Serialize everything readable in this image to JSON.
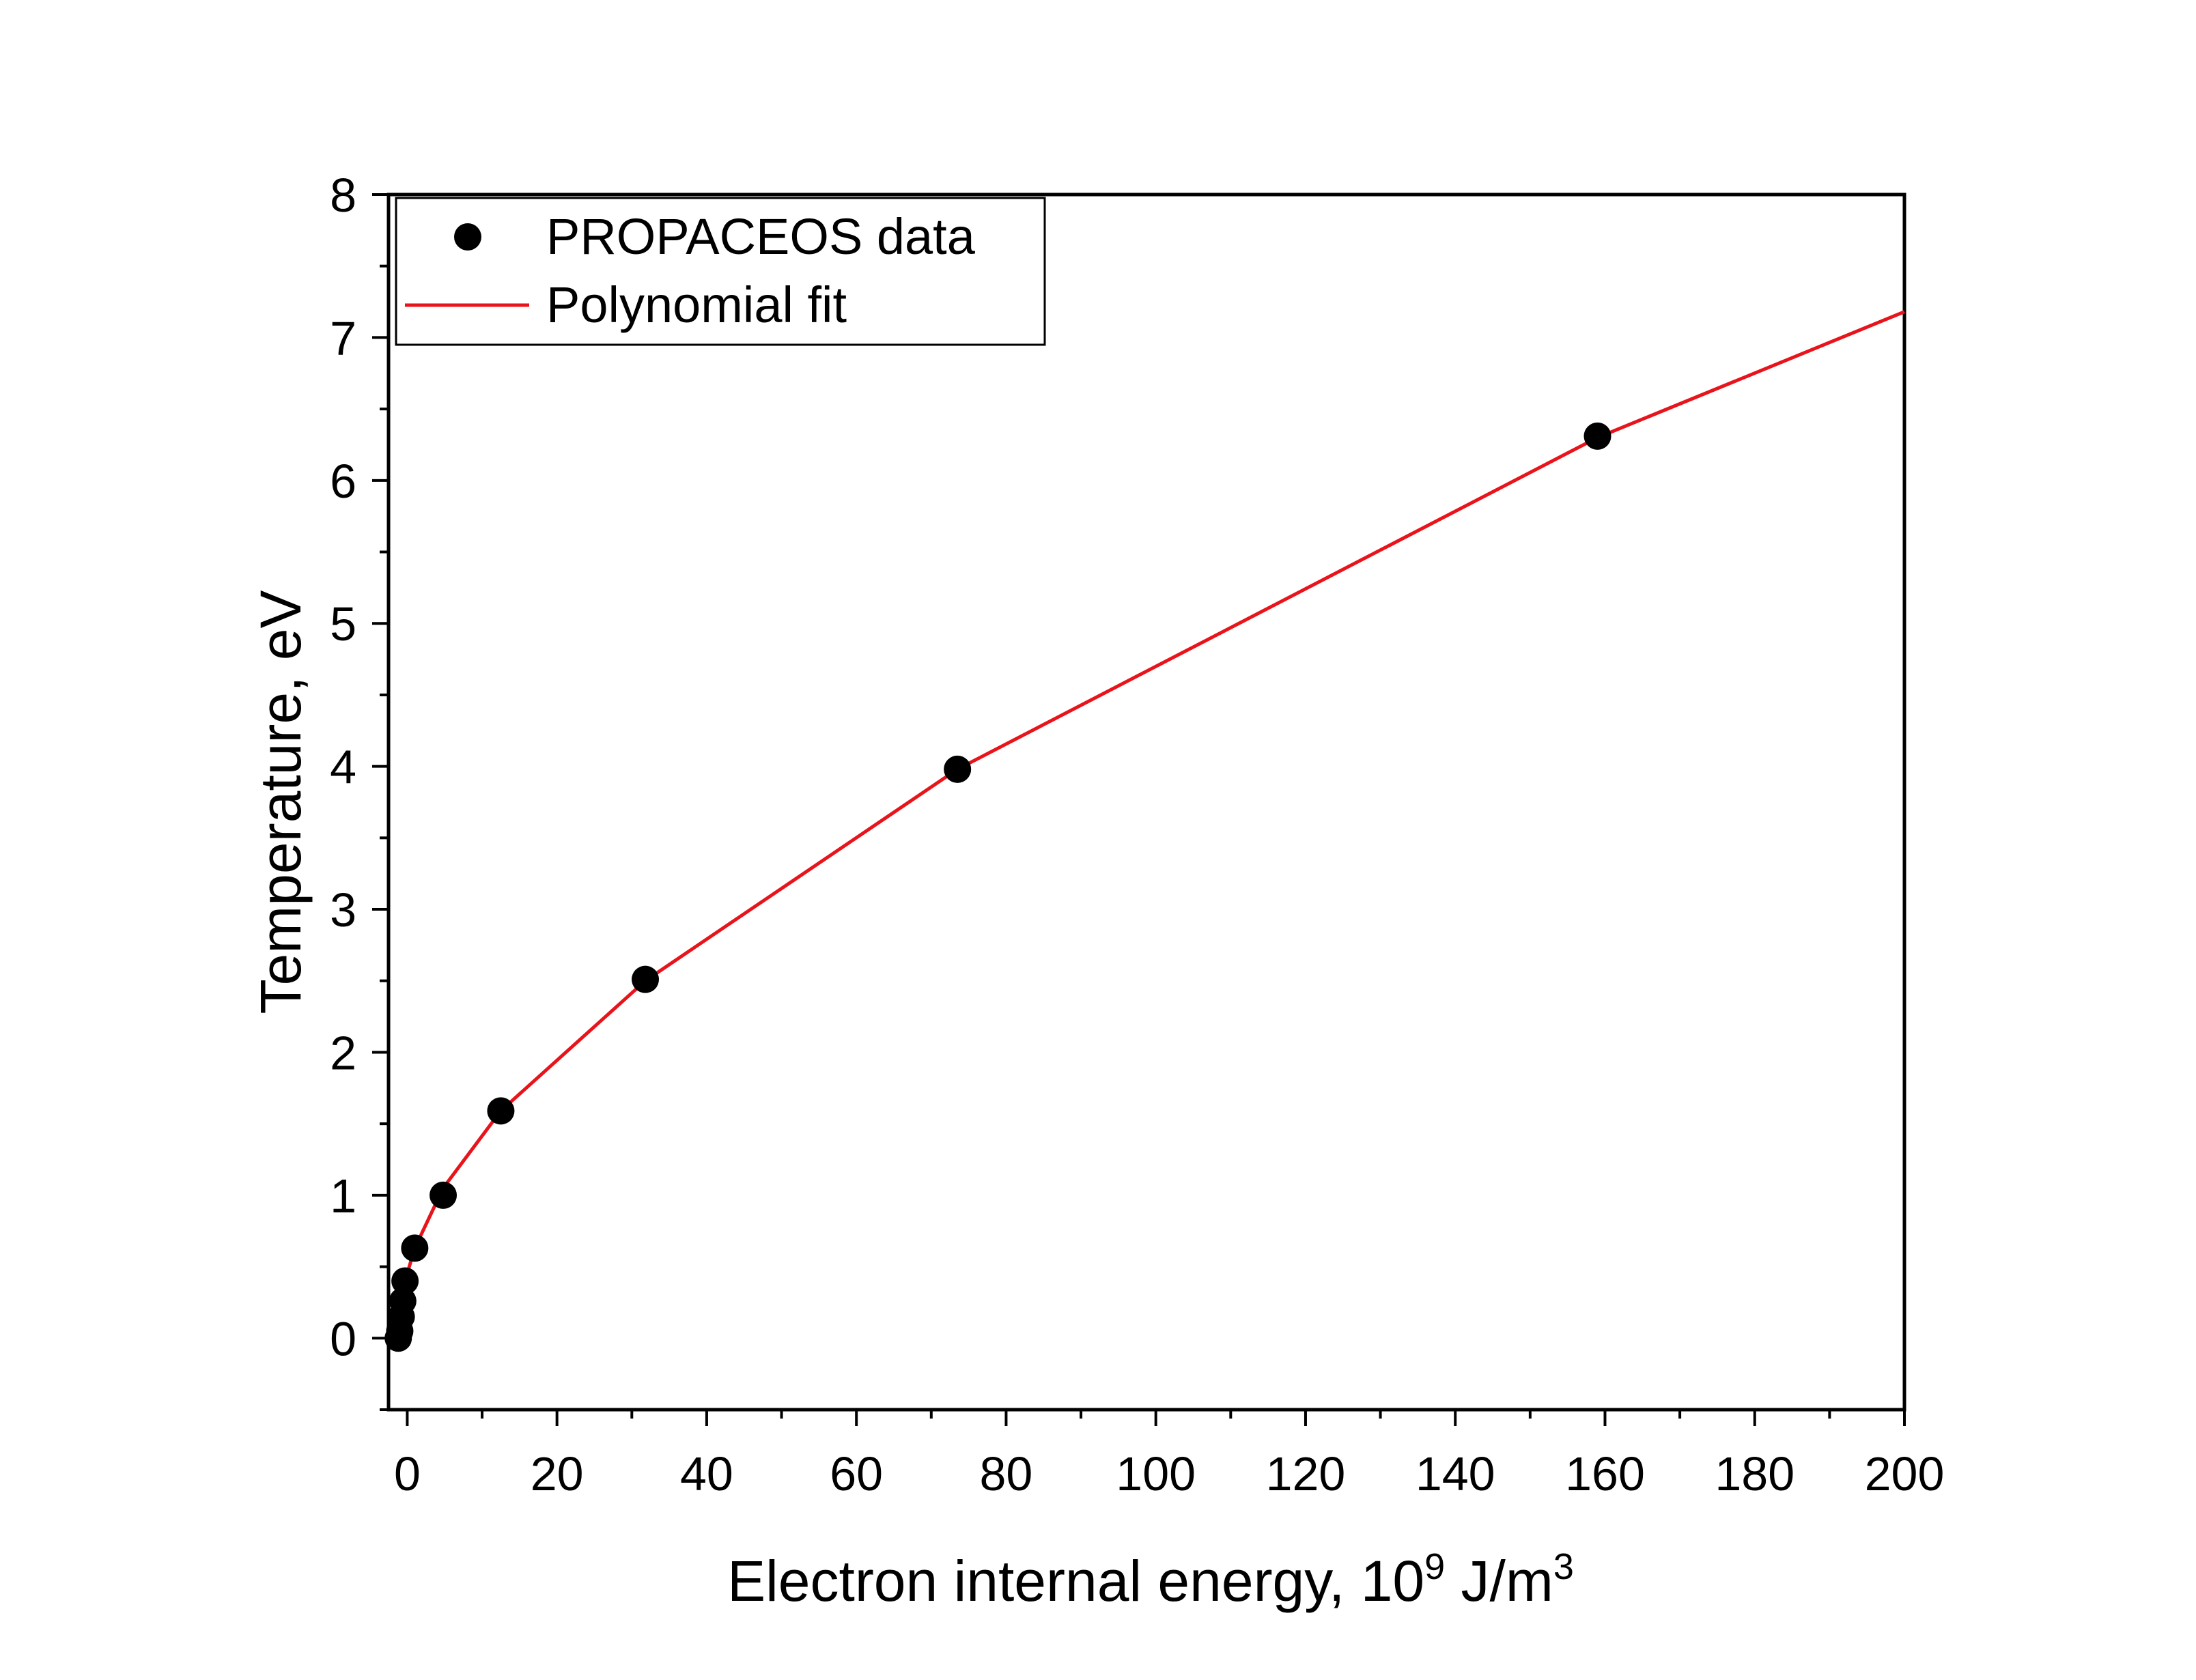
{
  "chart_data": {
    "type": "scatter",
    "title": "",
    "xlabel": "Electron internal energy, 10",
    "xlabel_exponent": "9",
    "xlabel_unit": " J/m",
    "xlabel_unit_exponent": "3",
    "ylabel": "Temperature, eV",
    "xlim": [
      -2.5,
      200
    ],
    "ylim": [
      -0.5,
      8
    ],
    "x_ticks": [
      0,
      20,
      40,
      60,
      80,
      100,
      120,
      140,
      160,
      180,
      200
    ],
    "x_tick_labels": [
      "0",
      "20",
      "40",
      "60",
      "80",
      "100",
      "120",
      "140",
      "160",
      "180",
      "200"
    ],
    "y_ticks": [
      0,
      1,
      2,
      3,
      4,
      5,
      6,
      7,
      8
    ],
    "y_tick_labels": [
      "0",
      "1",
      "2",
      "3",
      "4",
      "5",
      "6",
      "7",
      "8"
    ],
    "grid": false,
    "legend_position": "top-left",
    "series": [
      {
        "name": "PROPACEOS data",
        "kind": "scatter",
        "color": "#000000",
        "x": [
          -1.2,
          -1.0,
          -0.8,
          -0.6,
          -0.3,
          1.0,
          4.8,
          12.5,
          31.8,
          73.5,
          159.0
        ],
        "y": [
          0.0,
          0.05,
          0.15,
          0.26,
          0.4,
          0.63,
          1.0,
          1.59,
          2.51,
          3.98,
          6.31
        ]
      },
      {
        "name": "Polynomial fit",
        "kind": "line",
        "color": "#e8141b",
        "x": [
          -1.2,
          -0.3,
          1.0,
          4.8,
          12.5,
          31.8,
          73.5,
          159.0,
          200.0
        ],
        "y": [
          0.05,
          0.4,
          0.63,
          1.05,
          1.59,
          2.5,
          3.98,
          6.3,
          7.18
        ]
      }
    ]
  }
}
